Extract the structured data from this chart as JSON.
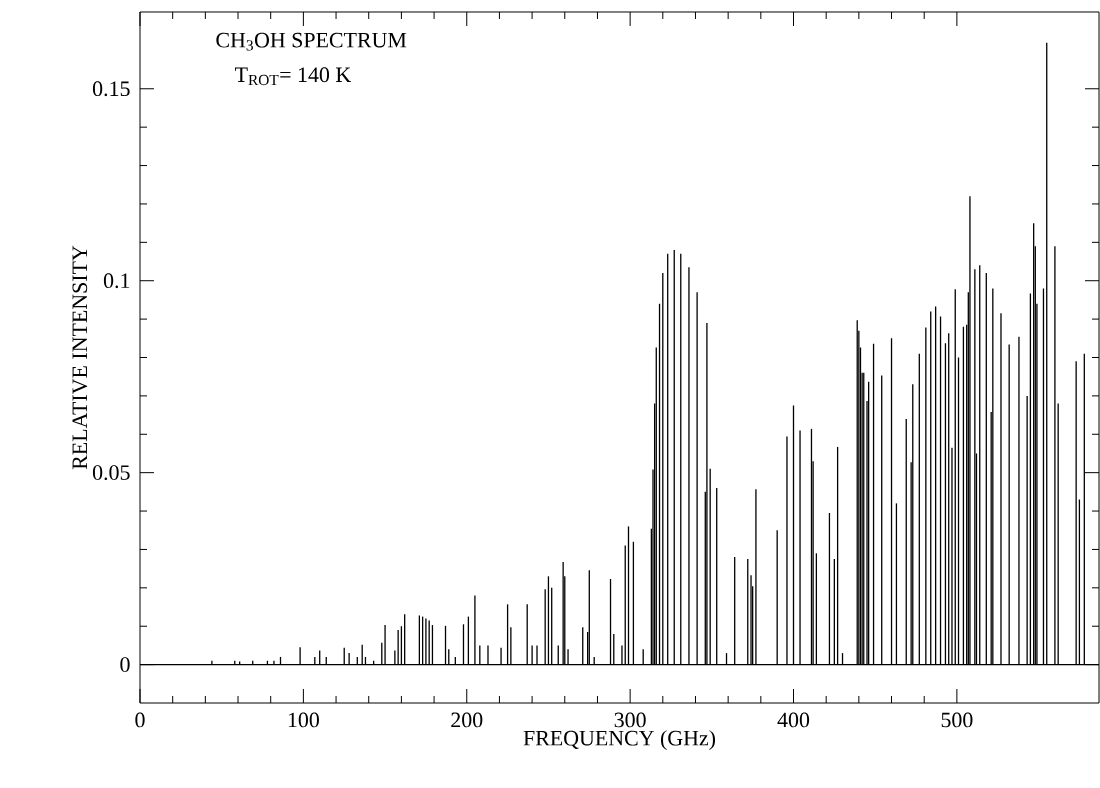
{
  "chart_data": {
    "type": "bar",
    "title": "CH$_{3}$OH SPECTRUM",
    "subtitle": "T$_{ROT}$= 140 K",
    "xlabel": "FREQUENCY (GHz)",
    "ylabel": "RELATIVE INTENSITY",
    "x": [
      44,
      58,
      61,
      69,
      78,
      82,
      86,
      98,
      107,
      110,
      114,
      125,
      128,
      133,
      136,
      138,
      143,
      148,
      150,
      156,
      158,
      160,
      162,
      171,
      173,
      175,
      177,
      179,
      187,
      189,
      193,
      198,
      201,
      205,
      208,
      213,
      221,
      225,
      227,
      237,
      240,
      243,
      248,
      250,
      252,
      256,
      259,
      260,
      262,
      271,
      274,
      275,
      278,
      288,
      290,
      295,
      297,
      299,
      302,
      308,
      313,
      314,
      315,
      316,
      318,
      320,
      323,
      327,
      331,
      336,
      341,
      346,
      347,
      349,
      353,
      359,
      364,
      372,
      374,
      375,
      377,
      390,
      396,
      400,
      404,
      411,
      412,
      414,
      422,
      425,
      427,
      430,
      439,
      440,
      441,
      442,
      443,
      445,
      446,
      449,
      454,
      460,
      463,
      469,
      472,
      473,
      477,
      481,
      484,
      487,
      490,
      493,
      495,
      497,
      499,
      501,
      504,
      506,
      507,
      508,
      511,
      512,
      514,
      518,
      521,
      522,
      527,
      532,
      538,
      543,
      545,
      547,
      548,
      549,
      553,
      555,
      560,
      562,
      573,
      575,
      578
    ],
    "values": [
      0.001,
      0.001,
      0.0008,
      0.001,
      0.001,
      0.001,
      0.002,
      0.0045,
      0.002,
      0.0037,
      0.002,
      0.0044,
      0.003,
      0.002,
      0.0052,
      0.002,
      0.001,
      0.0057,
      0.0103,
      0.0037,
      0.009,
      0.01,
      0.0131,
      0.0128,
      0.0125,
      0.012,
      0.0115,
      0.0103,
      0.0101,
      0.004,
      0.002,
      0.0105,
      0.0125,
      0.018,
      0.005,
      0.005,
      0.0044,
      0.0157,
      0.0097,
      0.0157,
      0.005,
      0.005,
      0.0196,
      0.023,
      0.02,
      0.005,
      0.0267,
      0.023,
      0.004,
      0.0097,
      0.0085,
      0.0246,
      0.002,
      0.0223,
      0.008,
      0.005,
      0.031,
      0.036,
      0.032,
      0.004,
      0.0354,
      0.0508,
      0.068,
      0.0826,
      0.094,
      0.102,
      0.107,
      0.108,
      0.107,
      0.1035,
      0.097,
      0.045,
      0.089,
      0.051,
      0.046,
      0.003,
      0.028,
      0.0275,
      0.0233,
      0.0204,
      0.0457,
      0.035,
      0.0594,
      0.0675,
      0.061,
      0.0614,
      0.053,
      0.029,
      0.0395,
      0.0275,
      0.0567,
      0.003,
      0.0897,
      0.087,
      0.0826,
      0.076,
      0.076,
      0.0687,
      0.0737,
      0.0836,
      0.0753,
      0.085,
      0.042,
      0.064,
      0.0527,
      0.073,
      0.081,
      0.0878,
      0.092,
      0.0933,
      0.0907,
      0.0837,
      0.0863,
      0.0565,
      0.0978,
      0.08,
      0.088,
      0.0885,
      0.097,
      0.122,
      0.103,
      0.055,
      0.104,
      0.102,
      0.0658,
      0.098,
      0.0915,
      0.0834,
      0.0854,
      0.07,
      0.0967,
      0.115,
      0.109,
      0.094,
      0.098,
      0.162,
      0.109,
      0.068,
      0.079,
      0.043,
      0.081
    ],
    "color": "#000000",
    "xlim": [
      0,
      587
    ],
    "ylim": [
      -0.01,
      0.17
    ],
    "xticks": [
      0,
      100,
      200,
      300,
      400,
      500
    ],
    "yticks": [
      0,
      0.05,
      0.1,
      0.15
    ],
    "line_style": "solid"
  }
}
